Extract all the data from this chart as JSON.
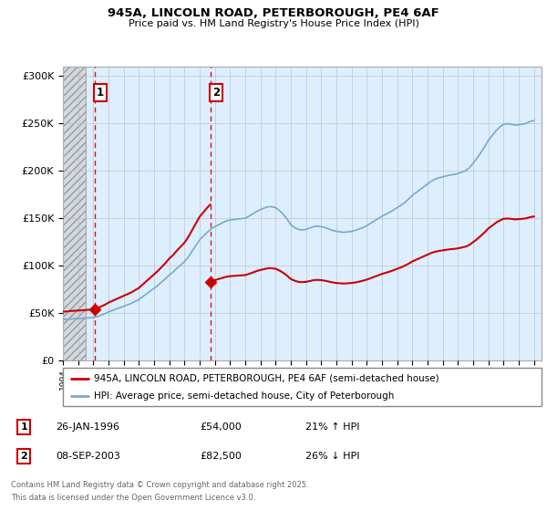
{
  "title_line1": "945A, LINCOLN ROAD, PETERBOROUGH, PE4 6AF",
  "title_line2": "Price paid vs. HM Land Registry's House Price Index (HPI)",
  "background_color": "#ffffff",
  "plot_bg_color": "#ddeeff",
  "grid_color": "#bbbbbb",
  "red_line_color": "#cc0000",
  "blue_line_color": "#77aacc",
  "sale1_year": 1996.07,
  "sale1_price": 54000,
  "sale1_label": "1",
  "sale2_year": 2003.69,
  "sale2_price": 82500,
  "sale2_label": "2",
  "xmin": 1994.0,
  "xmax": 2025.5,
  "ymin": 0,
  "ymax": 310000,
  "yticks": [
    0,
    50000,
    100000,
    150000,
    200000,
    250000,
    300000
  ],
  "ytick_labels": [
    "£0",
    "£50K",
    "£100K",
    "£150K",
    "£200K",
    "£250K",
    "£300K"
  ],
  "legend_line1": "945A, LINCOLN ROAD, PETERBOROUGH, PE4 6AF (semi-detached house)",
  "legend_line2": "HPI: Average price, semi-detached house, City of Peterborough",
  "footer_line1": "Contains HM Land Registry data © Crown copyright and database right 2025.",
  "footer_line2": "This data is licensed under the Open Government Licence v3.0.",
  "table_row1": [
    "1",
    "26-JAN-1996",
    "£54,000",
    "21% ↑ HPI"
  ],
  "table_row2": [
    "2",
    "08-SEP-2003",
    "£82,500",
    "26% ↓ HPI"
  ],
  "hpi_years": [
    1994.0,
    1994.25,
    1994.5,
    1994.75,
    1995.0,
    1995.25,
    1995.5,
    1995.75,
    1996.0,
    1996.25,
    1996.5,
    1996.75,
    1997.0,
    1997.25,
    1997.5,
    1997.75,
    1998.0,
    1998.25,
    1998.5,
    1998.75,
    1999.0,
    1999.25,
    1999.5,
    1999.75,
    2000.0,
    2000.25,
    2000.5,
    2000.75,
    2001.0,
    2001.25,
    2001.5,
    2001.75,
    2002.0,
    2002.25,
    2002.5,
    2002.75,
    2003.0,
    2003.25,
    2003.5,
    2003.75,
    2004.0,
    2004.25,
    2004.5,
    2004.75,
    2005.0,
    2005.25,
    2005.5,
    2005.75,
    2006.0,
    2006.25,
    2006.5,
    2006.75,
    2007.0,
    2007.25,
    2007.5,
    2007.75,
    2008.0,
    2008.25,
    2008.5,
    2008.75,
    2009.0,
    2009.25,
    2009.5,
    2009.75,
    2010.0,
    2010.25,
    2010.5,
    2010.75,
    2011.0,
    2011.25,
    2011.5,
    2011.75,
    2012.0,
    2012.25,
    2012.5,
    2012.75,
    2013.0,
    2013.25,
    2013.5,
    2013.75,
    2014.0,
    2014.25,
    2014.5,
    2014.75,
    2015.0,
    2015.25,
    2015.5,
    2015.75,
    2016.0,
    2016.25,
    2016.5,
    2016.75,
    2017.0,
    2017.25,
    2017.5,
    2017.75,
    2018.0,
    2018.25,
    2018.5,
    2018.75,
    2019.0,
    2019.25,
    2019.5,
    2019.75,
    2020.0,
    2020.25,
    2020.5,
    2020.75,
    2021.0,
    2021.25,
    2021.5,
    2021.75,
    2022.0,
    2022.25,
    2022.5,
    2022.75,
    2023.0,
    2023.25,
    2023.5,
    2023.75,
    2024.0,
    2024.25,
    2024.5,
    2024.75,
    2025.0
  ],
  "hpi_values": [
    43000,
    43200,
    43500,
    43800,
    44000,
    44200,
    44500,
    44700,
    45000,
    46000,
    47500,
    49000,
    51000,
    52500,
    54000,
    55500,
    57000,
    58500,
    60000,
    62000,
    64000,
    67000,
    70000,
    73000,
    76000,
    79000,
    82500,
    86000,
    90000,
    93000,
    97000,
    100500,
    104000,
    109000,
    115000,
    121000,
    127000,
    131000,
    135000,
    138500,
    141000,
    143000,
    145000,
    147000,
    148000,
    148500,
    149000,
    149500,
    150000,
    152000,
    154500,
    157000,
    159000,
    160500,
    162000,
    162000,
    161000,
    158000,
    154000,
    149000,
    143000,
    140000,
    138000,
    137500,
    138000,
    139500,
    141000,
    141500,
    141000,
    140000,
    138500,
    137000,
    136000,
    135500,
    135000,
    135500,
    136000,
    137000,
    138500,
    140000,
    142000,
    144500,
    147000,
    149500,
    152000,
    154000,
    156000,
    158500,
    161000,
    163500,
    166500,
    170000,
    174000,
    177000,
    180000,
    183000,
    186000,
    189000,
    191000,
    192500,
    193500,
    194500,
    195500,
    196000,
    197000,
    198500,
    200000,
    203000,
    208000,
    213000,
    219000,
    225000,
    232000,
    237000,
    242000,
    246000,
    249000,
    249500,
    249000,
    248000,
    248500,
    249000,
    250000,
    252000,
    253000
  ],
  "red_years_seg1": [
    1994.0,
    1994.25,
    1994.5,
    1994.75,
    1995.0,
    1995.25,
    1995.5,
    1995.75,
    1996.0,
    1996.07,
    1996.25,
    1996.5,
    1996.75,
    1997.0,
    1997.25,
    1997.5,
    1997.75,
    1998.0,
    1998.25,
    1998.5,
    1998.75,
    1999.0,
    1999.25,
    1999.5,
    1999.75,
    2000.0,
    2000.25,
    2000.5,
    2000.75,
    2001.0,
    2001.25,
    2001.5,
    2001.75,
    2002.0,
    2002.25,
    2002.5,
    2002.75,
    2003.0,
    2003.25,
    2003.5,
    2003.69
  ],
  "red_years_seg2": [
    2003.69,
    2003.75,
    2004.0,
    2004.25,
    2004.5,
    2004.75,
    2005.0,
    2005.25,
    2005.5,
    2005.75,
    2006.0,
    2006.25,
    2006.5,
    2006.75,
    2007.0,
    2007.25,
    2007.5,
    2007.75,
    2008.0,
    2008.25,
    2008.5,
    2008.75,
    2009.0,
    2009.25,
    2009.5,
    2009.75,
    2010.0,
    2010.25,
    2010.5,
    2010.75,
    2011.0,
    2011.25,
    2011.5,
    2011.75,
    2012.0,
    2012.25,
    2012.5,
    2012.75,
    2013.0,
    2013.25,
    2013.5,
    2013.75,
    2014.0,
    2014.25,
    2014.5,
    2014.75,
    2015.0,
    2015.25,
    2015.5,
    2015.75,
    2016.0,
    2016.25,
    2016.5,
    2016.75,
    2017.0,
    2017.25,
    2017.5,
    2017.75,
    2018.0,
    2018.25,
    2018.5,
    2018.75,
    2019.0,
    2019.25,
    2019.5,
    2019.75,
    2020.0,
    2020.25,
    2020.5,
    2020.75,
    2021.0,
    2021.25,
    2021.5,
    2021.75,
    2022.0,
    2022.25,
    2022.5,
    2022.75,
    2023.0,
    2023.25,
    2023.5,
    2023.75,
    2024.0,
    2024.25,
    2024.5,
    2024.75,
    2025.0
  ]
}
